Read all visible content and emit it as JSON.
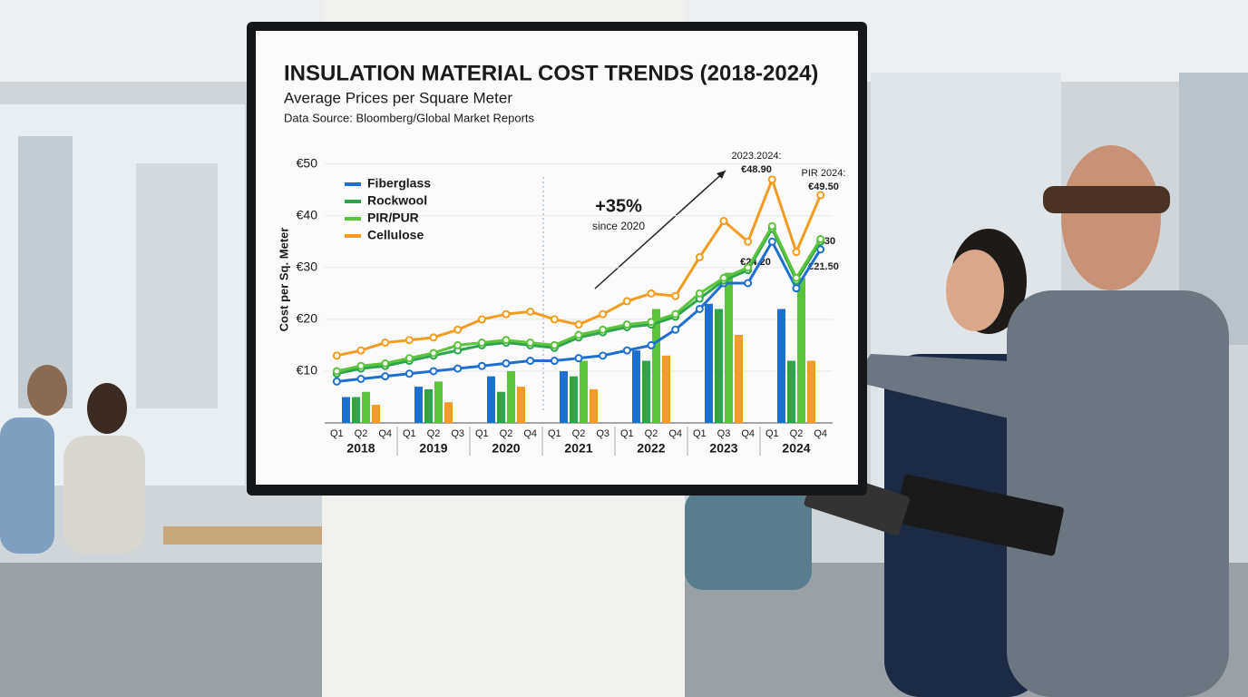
{
  "chart_data": {
    "type": "line",
    "title": "INSULATION MATERIAL COST TRENDS (2018-2024)",
    "subtitle": "Average Prices per Square Meter",
    "source": "Data Source: Bloomberg/Global Market Reports",
    "y_label": "Cost per Sq. Meter",
    "categories": [
      "Q1",
      "Q2",
      "Q4",
      "Q1",
      "Q2",
      "Q3",
      "Q1",
      "Q2",
      "Q4",
      "Q1",
      "Q2",
      "Q3",
      "Q1",
      "Q2",
      "Q4",
      "Q1",
      "Q3",
      "Q4",
      "Q1",
      "Q2",
      "Q4"
    ],
    "years": [
      "2018",
      "2019",
      "2020",
      "2021",
      "2022",
      "2023",
      "2024"
    ],
    "series": [
      {
        "name": "Fiberglass",
        "color": "#1f6fd1",
        "values": [
          8,
          8.5,
          9,
          9.5,
          10,
          10.5,
          11,
          11.5,
          12,
          12,
          12.5,
          13,
          14,
          15,
          18,
          22,
          27,
          27,
          35,
          26,
          33.5
        ],
        "bar_values": [
          5,
          7,
          9,
          10,
          14,
          23,
          22
        ]
      },
      {
        "name": "Rockwool",
        "color": "#2ea44f",
        "values": [
          9.5,
          10.5,
          11,
          12,
          13,
          14,
          15,
          15.5,
          15,
          14.5,
          16.5,
          17.5,
          18.5,
          19,
          20.5,
          24,
          27.5,
          29.5,
          37.5,
          27.5,
          35
        ],
        "bar_values": [
          5,
          6.5,
          6,
          9,
          12,
          22,
          12
        ]
      },
      {
        "name": "PIR/PUR",
        "color": "#5cc43a",
        "values": [
          10,
          11,
          11.5,
          12.5,
          13.5,
          15,
          15.5,
          16,
          15.5,
          15,
          17,
          18,
          19,
          19.5,
          21,
          25,
          28,
          30,
          38,
          28,
          35.5
        ],
        "bar_values": [
          6,
          8,
          10,
          12,
          22,
          29,
          28
        ]
      },
      {
        "name": "Cellulose",
        "color": "#f39c1f",
        "values": [
          13,
          14,
          15.5,
          16,
          16.5,
          18,
          20,
          21,
          21.5,
          20,
          19,
          21,
          23.5,
          25,
          24.5,
          32,
          39,
          35,
          47,
          33,
          44
        ],
        "bar_values": [
          3.5,
          4,
          7,
          6.5,
          13,
          17,
          12
        ]
      }
    ],
    "ylim": [
      0,
      51
    ],
    "yticks": [
      {
        "value": 10,
        "label": "€10"
      },
      {
        "value": 20,
        "label": "€20"
      },
      {
        "value": 30,
        "label": "€30"
      },
      {
        "value": 40,
        "label": "€40"
      },
      {
        "value": 50,
        "label": "€50"
      }
    ],
    "grid": true,
    "legend": "upper left",
    "annotations": [
      "+35%",
      "since 2020",
      "2023.2024:",
      "€48.90",
      "PIR 2024:",
      "€49.50",
      "€30",
      "€24.20",
      "€21.50"
    ]
  }
}
